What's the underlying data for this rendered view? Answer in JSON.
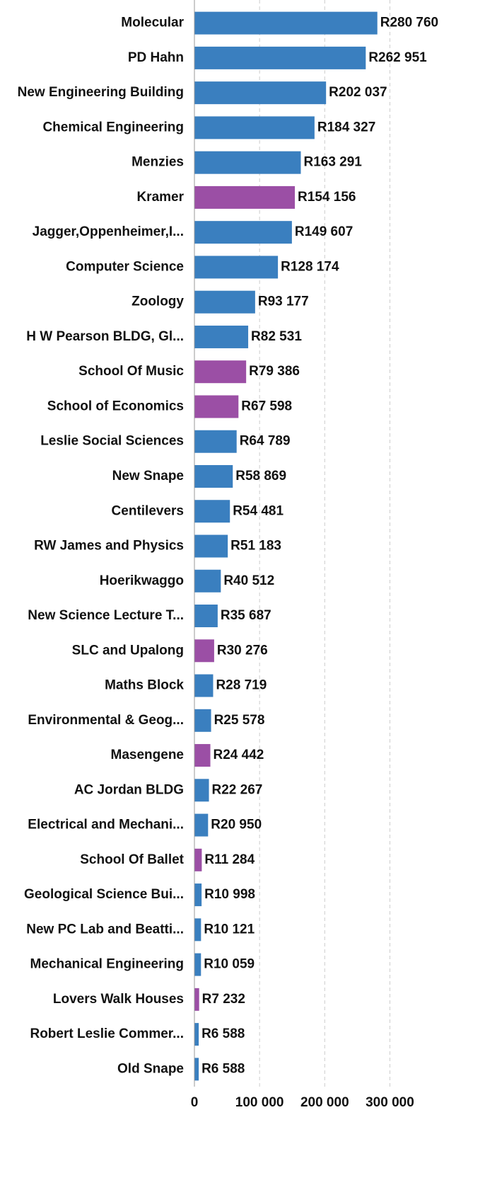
{
  "chart_data": {
    "type": "bar",
    "orientation": "horizontal",
    "categories": [
      "Molecular",
      "PD Hahn",
      "New Engineering Building",
      "Chemical Engineering",
      "Menzies",
      "Kramer",
      "Jagger,Oppenheimer,I...",
      "Computer Science",
      "Zoology",
      "H W Pearson BLDG, Gl...",
      "School Of Music",
      "School of Economics",
      "Leslie Social Sciences",
      "New Snape",
      "Centilevers",
      "RW James and Physics",
      "Hoerikwaggo",
      "New Science Lecture T...",
      "SLC and Upalong",
      "Maths Block",
      "Environmental & Geog...",
      "Masengene",
      "AC Jordan BLDG",
      "Electrical and Mechani...",
      "School Of Ballet",
      "Geological Science Bui...",
      "New PC Lab and Beatti...",
      "Mechanical Engineering",
      "Lovers Walk Houses",
      "Robert Leslie Commer...",
      "Old Snape"
    ],
    "values": [
      280760,
      262951,
      202037,
      184327,
      163291,
      154156,
      149607,
      128174,
      93177,
      82531,
      79386,
      67598,
      64789,
      58869,
      54481,
      51183,
      40512,
      35687,
      30276,
      28719,
      25578,
      24442,
      22267,
      20950,
      11284,
      10998,
      10121,
      10059,
      7232,
      6588,
      6588
    ],
    "value_labels": [
      "R280 760",
      "R262 951",
      "R202 037",
      "R184 327",
      "R163 291",
      "R154 156",
      "R149 607",
      "R128 174",
      "R93 177",
      "R82 531",
      "R79 386",
      "R67 598",
      "R64 789",
      "R58 869",
      "R54 481",
      "R51 183",
      "R40 512",
      "R35 687",
      "R30 276",
      "R28 719",
      "R25 578",
      "R24 442",
      "R22 267",
      "R20 950",
      "R11 284",
      "R10 998",
      "R10 121",
      "R10 059",
      "R7 232",
      "R6 588",
      "R6 588"
    ],
    "colors": [
      "#3a7fbf",
      "#3a7fbf",
      "#3a7fbf",
      "#3a7fbf",
      "#3a7fbf",
      "#9b4fa5",
      "#3a7fbf",
      "#3a7fbf",
      "#3a7fbf",
      "#3a7fbf",
      "#9b4fa5",
      "#9b4fa5",
      "#3a7fbf",
      "#3a7fbf",
      "#3a7fbf",
      "#3a7fbf",
      "#3a7fbf",
      "#3a7fbf",
      "#9b4fa5",
      "#3a7fbf",
      "#3a7fbf",
      "#9b4fa5",
      "#3a7fbf",
      "#3a7fbf",
      "#9b4fa5",
      "#3a7fbf",
      "#3a7fbf",
      "#3a7fbf",
      "#9b4fa5",
      "#3a7fbf",
      "#3a7fbf"
    ],
    "xlim": [
      0,
      446000
    ],
    "xticks": [
      0,
      {
        "value": 100000,
        "label": "100 000"
      },
      {
        "value": 200000,
        "label": "200 000"
      },
      {
        "value": 300000,
        "label": "300 000"
      }
    ],
    "grid": true
  }
}
